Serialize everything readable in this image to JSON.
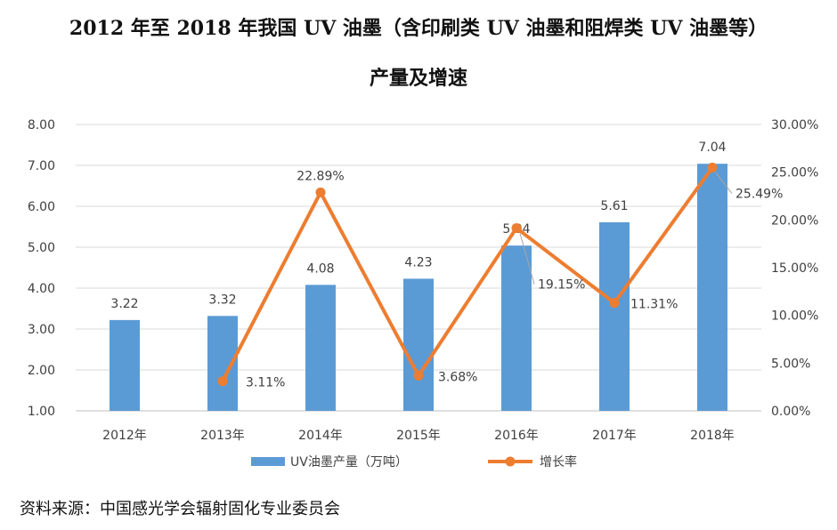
{
  "title": {
    "line1": "2012 年至 2018 年我国 UV 油墨（含印刷类 UV 油墨和阻焊类 UV 油墨等）",
    "line2": "产量及增速"
  },
  "chart_data": {
    "type": "bar+line",
    "categories": [
      "2012年",
      "2013年",
      "2014年",
      "2015年",
      "2016年",
      "2017年",
      "2018年"
    ],
    "series": [
      {
        "name": "UV油墨产量（万吨）",
        "type": "bar",
        "axis": "left",
        "values": [
          3.22,
          3.32,
          4.08,
          4.23,
          5.04,
          5.61,
          7.04
        ],
        "labels": [
          "3.22",
          "3.32",
          "4.08",
          "4.23",
          "5.04",
          "5.61",
          "7.04"
        ],
        "color": "#5b9bd5"
      },
      {
        "name": "增长率",
        "type": "line",
        "axis": "right",
        "values": [
          null,
          3.11,
          22.89,
          3.68,
          19.15,
          11.31,
          25.49
        ],
        "labels": [
          null,
          "3.11%",
          "22.89%",
          "3.68%",
          "19.15%",
          "11.31%",
          "25.49%"
        ],
        "color": "#ed7d31"
      }
    ],
    "left_axis": {
      "min": 1,
      "max": 8,
      "ticks": [
        "1.00",
        "2.00",
        "3.00",
        "4.00",
        "5.00",
        "6.00",
        "7.00",
        "8.00"
      ]
    },
    "right_axis": {
      "min": 0,
      "max": 30,
      "ticks": [
        "0.00%",
        "5.00%",
        "10.00%",
        "15.00%",
        "20.00%",
        "25.00%",
        "30.00%"
      ]
    },
    "grid": true,
    "legend_position": "bottom"
  },
  "source": "资料来源：中国感光学会辐射固化专业委员会"
}
